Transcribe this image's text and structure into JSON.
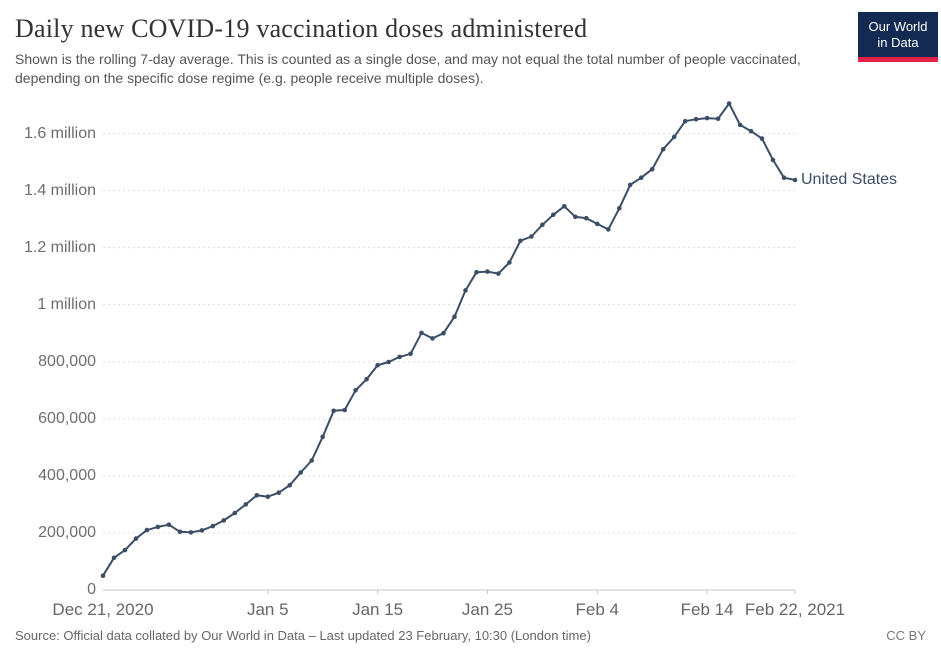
{
  "header": {
    "title": "Daily new COVID-19 vaccination doses administered",
    "subtitle": "Shown is the rolling 7-day average. This is counted as a single dose, and may not equal the total number of people vaccinated, depending on the specific dose regime (e.g. people receive multiple doses).",
    "logo": {
      "line1": "Our World",
      "line2": "in Data",
      "bg_color": "#132A52",
      "accent_color": "#E02245"
    }
  },
  "chart_data": {
    "type": "line",
    "title": "Daily new COVID-19 vaccination doses administered",
    "xlabel": "",
    "ylabel": "",
    "grid": "horizontal-dashed",
    "ylim": [
      0,
      1700000
    ],
    "line_color": "#3C4E66",
    "x": [
      "2020-12-21",
      "2020-12-22",
      "2020-12-23",
      "2020-12-24",
      "2020-12-25",
      "2020-12-26",
      "2020-12-27",
      "2020-12-28",
      "2020-12-29",
      "2020-12-30",
      "2020-12-31",
      "2021-01-01",
      "2021-01-02",
      "2021-01-03",
      "2021-01-04",
      "2021-01-05",
      "2021-01-06",
      "2021-01-07",
      "2021-01-08",
      "2021-01-09",
      "2021-01-10",
      "2021-01-11",
      "2021-01-12",
      "2021-01-13",
      "2021-01-14",
      "2021-01-15",
      "2021-01-16",
      "2021-01-17",
      "2021-01-18",
      "2021-01-19",
      "2021-01-20",
      "2021-01-21",
      "2021-01-22",
      "2021-01-23",
      "2021-01-24",
      "2021-01-25",
      "2021-01-26",
      "2021-01-27",
      "2021-01-28",
      "2021-01-29",
      "2021-01-30",
      "2021-01-31",
      "2021-02-01",
      "2021-02-02",
      "2021-02-03",
      "2021-02-04",
      "2021-02-05",
      "2021-02-06",
      "2021-02-07",
      "2021-02-08",
      "2021-02-09",
      "2021-02-10",
      "2021-02-11",
      "2021-02-12",
      "2021-02-13",
      "2021-02-14",
      "2021-02-15",
      "2021-02-16",
      "2021-02-17",
      "2021-02-18",
      "2021-02-19",
      "2021-02-20",
      "2021-02-21",
      "2021-02-22"
    ],
    "series": [
      {
        "name": "United States",
        "color": "#3C4E66",
        "values": [
          50000,
          113000,
          140000,
          180000,
          210000,
          221000,
          229000,
          204000,
          202000,
          209000,
          224000,
          244000,
          270000,
          300000,
          332000,
          327000,
          341000,
          367000,
          412000,
          454000,
          537000,
          628000,
          631000,
          700000,
          739000,
          788000,
          799000,
          817000,
          828000,
          901000,
          882000,
          900000,
          958000,
          1050000,
          1114000,
          1116000,
          1109000,
          1148000,
          1224000,
          1239000,
          1280000,
          1315000,
          1345000,
          1308000,
          1303000,
          1283000,
          1264000,
          1338000,
          1420000,
          1445000,
          1475000,
          1545000,
          1588000,
          1643000,
          1650000,
          1654000,
          1652000,
          1705000,
          1630000,
          1608000,
          1582000,
          1507000,
          1445000,
          1437000
        ]
      }
    ],
    "y_ticks": [
      {
        "value": 0,
        "label": "0"
      },
      {
        "value": 200000,
        "label": "200,000"
      },
      {
        "value": 400000,
        "label": "400,000"
      },
      {
        "value": 600000,
        "label": "600,000"
      },
      {
        "value": 800000,
        "label": "800,000"
      },
      {
        "value": 1000000,
        "label": "1 million"
      },
      {
        "value": 1200000,
        "label": "1.2 million"
      },
      {
        "value": 1400000,
        "label": "1.4 million"
      },
      {
        "value": 1600000,
        "label": "1.6 million"
      }
    ],
    "x_ticks": [
      {
        "index": 0,
        "label": "Dec 21, 2020",
        "tick": false
      },
      {
        "index": 15,
        "label": "Jan 5",
        "tick": true
      },
      {
        "index": 25,
        "label": "Jan 15",
        "tick": true
      },
      {
        "index": 35,
        "label": "Jan 25",
        "tick": true
      },
      {
        "index": 45,
        "label": "Feb 4",
        "tick": true
      },
      {
        "index": 55,
        "label": "Feb 14",
        "tick": true
      },
      {
        "index": 63,
        "label": "Feb 22, 2021",
        "tick": true
      }
    ],
    "legend_position": "end-of-line-label"
  },
  "footer": {
    "source": "Source: Official data collated by Our World in Data – Last updated 23 February, 10:30 (London time)",
    "license": "CC BY"
  }
}
